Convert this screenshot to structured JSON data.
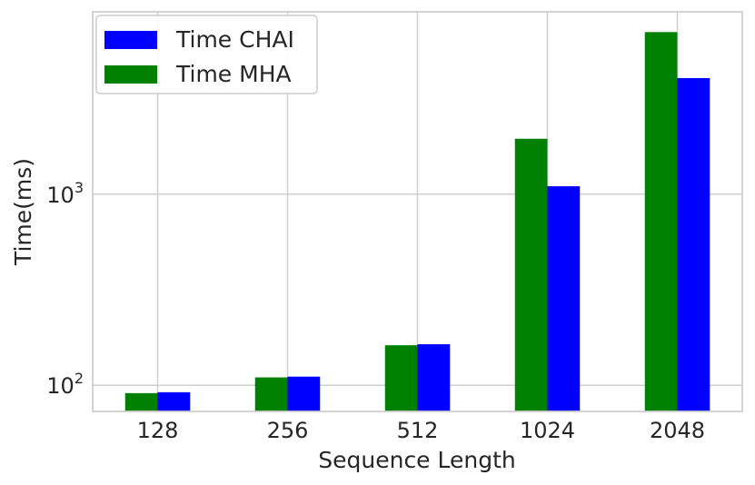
{
  "chart_data": {
    "type": "bar",
    "categories": [
      "128",
      "256",
      "512",
      "1024",
      "2048"
    ],
    "series": [
      {
        "name": "Time MHA",
        "values": [
          91,
          110,
          162,
          1950,
          7050
        ],
        "color": "#008000"
      },
      {
        "name": "Time CHAI",
        "values": [
          92,
          111,
          164,
          1100,
          4050
        ],
        "color": "#0000ff"
      }
    ],
    "legend_order": [
      "Time CHAI",
      "Time MHA"
    ],
    "legend_placement": "top-left",
    "xlabel": "Sequence Length",
    "ylabel": "Time(ms)",
    "yscale": "log",
    "ylim": [
      73,
      9000
    ],
    "yticks": [
      {
        "value": 100,
        "base": "10",
        "exp": "2"
      },
      {
        "value": 1000,
        "base": "10",
        "exp": "3"
      }
    ],
    "grid": true
  }
}
